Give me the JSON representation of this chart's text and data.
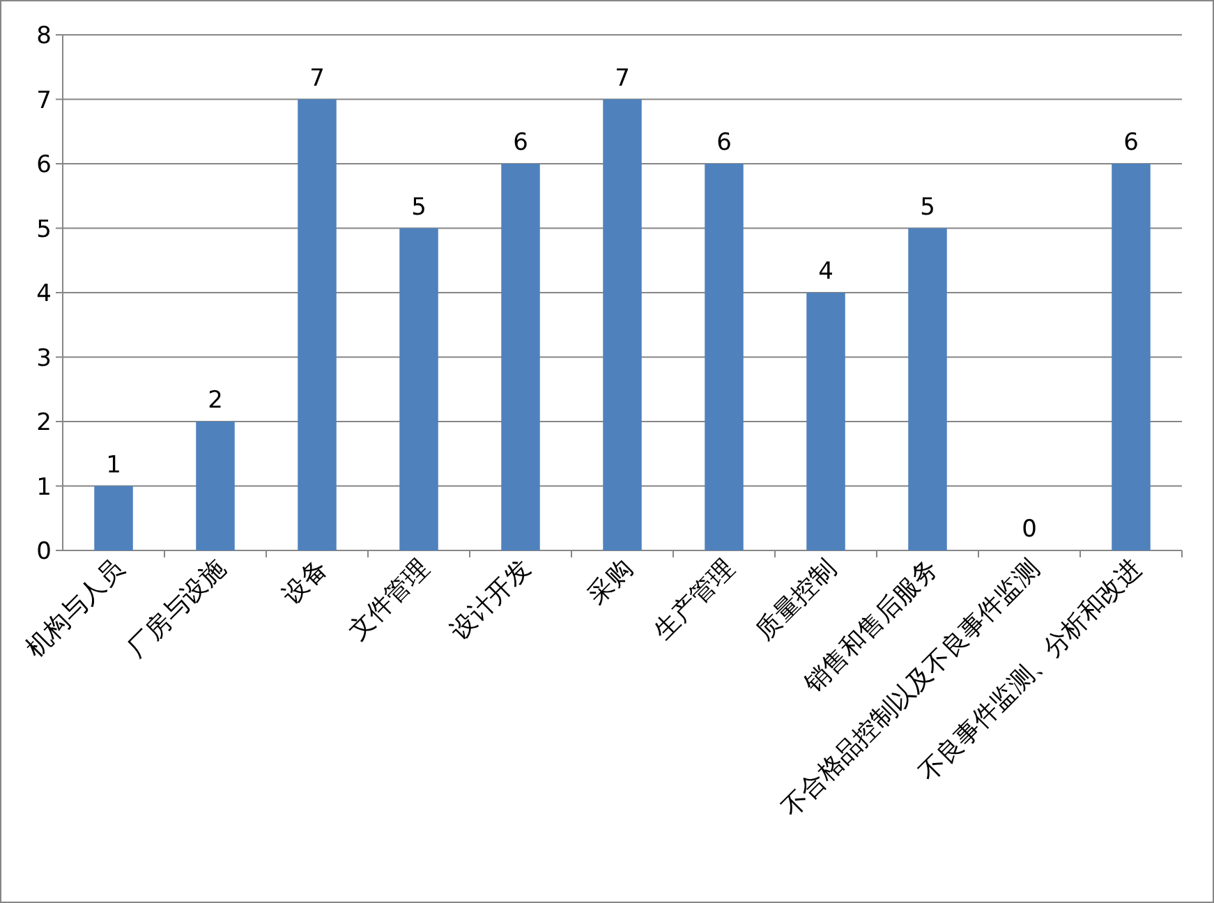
{
  "chart_data": {
    "type": "bar",
    "categories": [
      "机构与人员",
      "厂房与设施",
      "设备",
      "文件管理",
      "设计开发",
      "采购",
      "生产管理",
      "质量控制",
      "销售和售后服务",
      "不合格品控制以及不良事件监测",
      "不良事件监测、分析和改进"
    ],
    "values": [
      1,
      2,
      7,
      5,
      6,
      7,
      6,
      4,
      5,
      0,
      6
    ],
    "color": "#4f81bd",
    "ylim": [
      0,
      8
    ],
    "yticks": [
      0,
      1,
      2,
      3,
      4,
      5,
      6,
      7,
      8
    ],
    "grid": "y",
    "data_labels": true
  }
}
